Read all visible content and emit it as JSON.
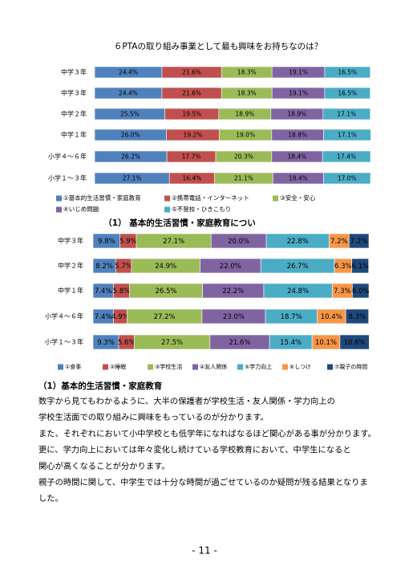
{
  "chart_data": [
    {
      "type": "bar",
      "orientation": "horizontal",
      "stacked": true,
      "title": "６PTAの取り組み事業として最も興味をお持ちなのは？",
      "categories": [
        "中学３年",
        "中学３年",
        "中学２年",
        "中学１年",
        "小学４～６年",
        "小学１～３年"
      ],
      "xlim": [
        0,
        100
      ],
      "series": [
        {
          "name": "①基本的生活習慣・家庭教育",
          "color": "#4f81bd",
          "values": [
            24.4,
            24.4,
            25.5,
            26.0,
            26.2,
            27.1
          ],
          "value_labels": [
            "24.4%",
            "24.4%",
            "25.5%",
            "26.0%",
            "26.2%",
            "27.1%"
          ]
        },
        {
          "name": "②携帯電話・インターネット",
          "color": "#c0504d",
          "values": [
            21.6,
            21.6,
            19.5,
            19.2,
            17.7,
            16.4
          ],
          "value_labels": [
            "21.6%",
            "21.6%",
            "19.5%",
            "19.2%",
            "17.7%",
            "16.4%"
          ]
        },
        {
          "name": "③安全・安心",
          "color": "#9bbb59",
          "values": [
            18.3,
            18.3,
            18.9,
            19.0,
            20.3,
            21.1
          ],
          "value_labels": [
            "18.3%",
            "18.3%",
            "18.9%",
            "19.0%",
            "20.3%",
            "21.1%"
          ]
        },
        {
          "name": "④いじめ問題",
          "color": "#8064a2",
          "values": [
            19.1,
            19.1,
            18.9,
            18.8,
            18.4,
            18.4
          ],
          "value_labels": [
            "19.1%",
            "19.1%",
            "18.9%",
            "18.8%",
            "18.4%",
            "18.4%"
          ]
        },
        {
          "name": "⑤不登校・ひきこもり",
          "color": "#4bacc6",
          "values": [
            16.5,
            16.5,
            17.1,
            17.1,
            17.4,
            17.0
          ],
          "value_labels": [
            "16.5%",
            "16.5%",
            "17.1%",
            "17.1%",
            "17.4%",
            "17.0%"
          ]
        }
      ]
    },
    {
      "type": "bar",
      "orientation": "horizontal",
      "stacked": true,
      "title": "（1） 基本的生活習慣・家庭教育につい",
      "categories": [
        "中学３年",
        "中学２年",
        "中学１年",
        "小学４～６年",
        "小学１～３年"
      ],
      "xlim": [
        0,
        100
      ],
      "series": [
        {
          "name": "①食事",
          "color": "#4f81bd",
          "values": [
            9.8,
            8.2,
            7.4,
            7.4,
            9.3
          ],
          "value_labels": [
            "9.8%",
            "8.2%",
            "7.4%",
            "7.4%",
            "9.3%"
          ]
        },
        {
          "name": "②睡眠",
          "color": "#c0504d",
          "values": [
            5.9,
            5.7,
            5.8,
            4.9,
            5.6
          ],
          "value_labels": [
            "5.9%",
            "5.7%",
            "5.8%",
            "4.9%",
            "5.6%"
          ]
        },
        {
          "name": "③学校生活",
          "color": "#9bbb59",
          "values": [
            27.1,
            24.9,
            26.5,
            27.2,
            27.5
          ],
          "value_labels": [
            "27.1%",
            "24.9%",
            "26.5%",
            "27.2%",
            "27.5%"
          ]
        },
        {
          "name": "④友人関係",
          "color": "#8064a2",
          "values": [
            20.0,
            22.0,
            22.2,
            23.0,
            21.6
          ],
          "value_labels": [
            "20.0%",
            "22.0%",
            "22.2%",
            "23.0%",
            "21.6%"
          ]
        },
        {
          "name": "⑤学力向上",
          "color": "#4bacc6",
          "values": [
            22.8,
            26.7,
            24.8,
            18.7,
            15.4
          ],
          "value_labels": [
            "22.8%",
            "26.7%",
            "24.8%",
            "18.7%",
            "15.4%"
          ]
        },
        {
          "name": "⑥しつけ",
          "color": "#f79646",
          "values": [
            7.2,
            6.3,
            7.3,
            10.4,
            10.1
          ],
          "value_labels": [
            "7.2%",
            "6.3%",
            "7.3%",
            "10.4%",
            "10.1%"
          ]
        },
        {
          "name": "⑦親子の時間",
          "color": "#1f497d",
          "values": [
            7.2,
            6.1,
            6.0,
            8.3,
            10.6
          ],
          "value_labels": [
            "7.2%",
            "6.1%",
            "6.0%",
            "8.3%",
            "10.6%"
          ]
        }
      ]
    }
  ],
  "document": {
    "heading": "（1）基本的生活習慣・家庭教育",
    "lines": [
      "数字から見てもわかるように、大半の保護者が学校生活・友人関係・学力向上の",
      "学校生活面での取り組みに興味をもっているのが分かります。",
      "また、それぞれにおいて小中学校とも低学年になればなるほど関心がある事が分かります。",
      "更に、学力向上においては年々変化し続けている学校教育において、中学生になると",
      "関心が高くなることが分かります。",
      "親子の時間に関して、中学生では十分な時間が過ごせているのか疑問が残る結果となりま",
      "した。"
    ],
    "page_number": "- 11 -"
  }
}
